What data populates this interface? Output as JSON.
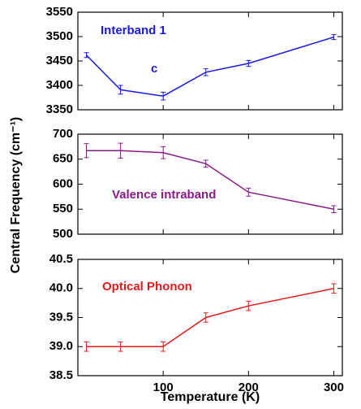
{
  "chart_data": [
    {
      "type": "line",
      "annotations": [
        "Interband 1",
        "c"
      ],
      "color": "#1a1ae6",
      "x": [
        10,
        50,
        100,
        150,
        200,
        300
      ],
      "values": [
        3462,
        3391,
        3378,
        3427,
        3445,
        3499
      ],
      "errors": [
        5,
        9,
        8,
        7,
        6,
        5
      ],
      "xlim": [
        0,
        310
      ],
      "xticks": [
        100,
        200,
        300
      ],
      "ylim": [
        3350,
        3550
      ],
      "yticks": [
        3350,
        3400,
        3450,
        3500,
        3550
      ],
      "ylabel": "Central Frequency (cm⁻¹)"
    },
    {
      "type": "line",
      "annotations": [
        "Valence intraband"
      ],
      "color": "#8b1a8b",
      "x": [
        10,
        50,
        100,
        150,
        200,
        300
      ],
      "values": [
        667,
        667,
        663,
        641,
        584,
        550
      ],
      "errors": [
        14,
        15,
        12,
        7,
        8,
        7
      ],
      "xlim": [
        0,
        310
      ],
      "xticks": [
        100,
        200,
        300
      ],
      "ylim": [
        500,
        700
      ],
      "yticks": [
        500,
        550,
        600,
        650,
        700
      ]
    },
    {
      "type": "line",
      "annotations": [
        "Optical Phonon"
      ],
      "color": "#e61a1a",
      "x": [
        10,
        50,
        100,
        150,
        200,
        300
      ],
      "values": [
        39,
        39,
        39,
        39.5,
        39.7,
        40
      ],
      "errors": [
        0.08,
        0.08,
        0.08,
        0.08,
        0.08,
        0.08
      ],
      "xlim": [
        0,
        310
      ],
      "xticks": [
        100,
        200,
        300
      ],
      "ylim": [
        38.5,
        40.5
      ],
      "yticks": [
        38.5,
        {
          "value": 39,
          "label": "39.0"
        },
        39.5,
        {
          "value": 40,
          "label": "40.0"
        },
        40.5
      ],
      "xlabel": "Temperature (K)"
    }
  ]
}
